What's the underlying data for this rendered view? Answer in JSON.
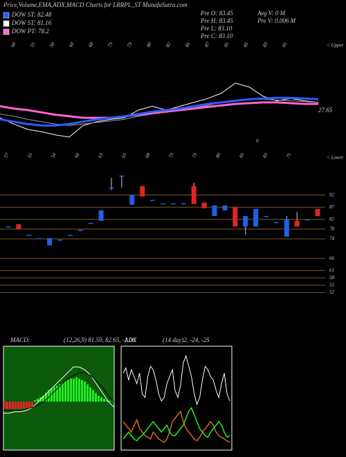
{
  "header": {
    "title": "Price,Volume,EMA,ADX,MACD Charts for LRRPL_ST MunafaSutra.com"
  },
  "legend": [
    {
      "label": "DOW ST: 82.48",
      "color": "#2a5cff"
    },
    {
      "label": "DOW ST: 81.16",
      "color": "#ffffff"
    },
    {
      "label": "DOW PT: 78.2",
      "color": "#ff66cc"
    }
  ],
  "quote": {
    "left": [
      "Pre O: 83.45",
      "Pre H: 83.45",
      "Pre L: 83.10",
      "Pre C: 83.10"
    ],
    "right": [
      "Avg V: 0 M",
      "Pre V: 0.006 M"
    ]
  },
  "chart_data": [
    {
      "type": "line",
      "upper_label": "< Upper",
      "lower_label": "< Lower",
      "annotations": [
        "27.65",
        "0"
      ],
      "top_labels": [
        "60",
        "55",
        "50",
        "60",
        "68",
        "73",
        "73",
        "80",
        "82",
        "85",
        "87",
        "85",
        "85",
        "83",
        "81"
      ],
      "bottom_labels": [
        "57",
        "55",
        "54",
        "60",
        "63",
        "65",
        "68",
        "73",
        "73",
        "80",
        "83",
        "83",
        "75"
      ],
      "series": [
        {
          "color": "#ffffff",
          "width": 1,
          "values": [
            60,
            52,
            45,
            42,
            38,
            35,
            50,
            55,
            58,
            60,
            70,
            75,
            70,
            75,
            80,
            85,
            92,
            105,
            100,
            88,
            82,
            85,
            82,
            80
          ]
        },
        {
          "color": "#999999",
          "width": 1,
          "values": [
            65,
            62,
            58,
            55,
            52,
            50,
            52,
            54,
            56,
            58,
            62,
            65,
            68,
            70,
            73,
            76,
            80,
            83,
            84,
            84,
            83,
            82,
            81,
            80
          ]
        },
        {
          "color": "#ff66cc",
          "width": 3,
          "values": [
            75,
            72,
            70,
            67,
            64,
            62,
            60,
            60,
            60,
            62,
            64,
            66,
            68,
            70,
            72,
            74,
            76,
            78,
            79,
            80,
            80,
            79,
            78,
            78
          ]
        },
        {
          "color": "#2a5cff",
          "width": 3,
          "values": [
            58,
            55,
            52,
            50,
            50,
            52,
            55,
            58,
            60,
            62,
            65,
            68,
            70,
            72,
            75,
            78,
            80,
            82,
            84,
            85,
            86,
            86,
            85,
            84
          ]
        }
      ]
    },
    {
      "type": "candlestick",
      "ylim": [
        47,
        101
      ],
      "yticks": [
        92,
        87,
        82,
        78,
        74,
        66,
        61,
        58,
        55,
        52
      ],
      "up_color": "#2060e8",
      "down_color": "#e02424",
      "grid_color": "#7a5a2a",
      "open": [
        79.1,
        80,
        75.7,
        74.3,
        71.4,
        73.7,
        75.7,
        77.7,
        80.6,
        81.4,
        95.1,
        100,
        88,
        95.7,
        90,
        88.6,
        88.6,
        88.6,
        95.7,
        88.9,
        83.4,
        85.7,
        87.1,
        79.1,
        79.1,
        83.4,
        80.9,
        74.9,
        81.4,
        82,
        86.3
      ],
      "high": [
        79.1,
        80,
        75.7,
        74.3,
        74.3,
        73.7,
        75.7,
        77.7,
        80.6,
        85.7,
        99.1,
        100,
        92,
        95.7,
        90,
        88.6,
        88.6,
        88.6,
        97.1,
        88.9,
        87.7,
        87.7,
        87.1,
        83.4,
        86.3,
        83.4,
        80.9,
        83.4,
        85,
        82,
        86.3
      ],
      "low": [
        79.1,
        78,
        75.7,
        74.3,
        71.4,
        73.7,
        75.7,
        77.7,
        80.6,
        81.4,
        94,
        95.1,
        88,
        91.4,
        90,
        88.6,
        88.6,
        88.6,
        88.3,
        86.6,
        83.4,
        85.7,
        79.1,
        75.7,
        79.1,
        83.4,
        80.9,
        74.9,
        79.1,
        82,
        83.4
      ],
      "close": [
        79.1,
        78,
        75.7,
        74.3,
        74.3,
        73.7,
        75.7,
        77.7,
        80.6,
        85.7,
        95.1,
        100,
        92,
        91.4,
        90,
        88.6,
        88.6,
        88.6,
        88.3,
        86.6,
        87.7,
        87.7,
        79.1,
        83.4,
        86.3,
        83.4,
        80.9,
        82,
        79.1,
        82,
        83.4
      ]
    },
    {
      "type": "macd",
      "title": "MACD:",
      "subtitle": "(12,26,9) 81.59, 82.65, -1.06",
      "background": "#0b5a0b",
      "pos_color": "#22ee22",
      "neg_color": "#ee2222",
      "histogram": [
        -2.5,
        -2.6,
        -2.5,
        -2.7,
        -2.6,
        -2.5,
        -2.6,
        -2.5,
        -2.4,
        -2.3,
        -2,
        0.5,
        1,
        1.5,
        2,
        3,
        4,
        4.5,
        5,
        5.5,
        6,
        6.5,
        7,
        7.5,
        8,
        8,
        8.5,
        8,
        7.5,
        7,
        6,
        5,
        4,
        3,
        2,
        1.5,
        1,
        0.5,
        0.3,
        0.2
      ],
      "series": [
        {
          "color": "#ffffff",
          "values": [
            -4,
            -4,
            -3.5,
            -3.5,
            -3,
            -2,
            0,
            2,
            4,
            6,
            8,
            10,
            12,
            12,
            11,
            9,
            6,
            3,
            0,
            -2
          ]
        },
        {
          "color": "#000000",
          "values": [
            -3,
            -3,
            -3,
            -3,
            -2.5,
            -2,
            -1,
            0,
            2,
            4,
            6,
            8,
            9,
            10,
            10,
            9,
            7,
            5,
            2,
            0
          ]
        }
      ]
    },
    {
      "type": "adx",
      "title": "ADX",
      "subtitle": "(14 day)2, -24, -25",
      "background": "#000000",
      "series": [
        {
          "color": "#ffffff",
          "values": [
            42,
            45,
            38,
            44,
            40,
            36,
            42,
            30,
            28,
            40,
            46,
            44,
            38,
            30,
            26,
            28,
            36,
            40,
            44,
            32,
            28,
            35,
            48,
            52,
            46,
            40,
            30,
            24,
            28,
            38,
            46,
            44,
            40,
            38,
            32,
            28,
            36,
            42,
            30,
            26
          ]
        },
        {
          "color": "#d2691e",
          "values": [
            14,
            12,
            10,
            8,
            12,
            15,
            10,
            8,
            6,
            5,
            4,
            8,
            6,
            4,
            3,
            2,
            4,
            8,
            14,
            16,
            18,
            20,
            14,
            10,
            8,
            6,
            4,
            3,
            5,
            8,
            10,
            12,
            14,
            12,
            8,
            6,
            5,
            4,
            3,
            2
          ]
        },
        {
          "color": "#22ee22",
          "values": [
            4,
            6,
            8,
            6,
            4,
            3,
            5,
            6,
            8,
            10,
            12,
            14,
            12,
            10,
            8,
            10,
            12,
            8,
            6,
            6,
            8,
            10,
            12,
            16,
            20,
            22,
            18,
            14,
            10,
            8,
            6,
            5,
            8,
            10,
            12,
            14,
            12,
            8,
            5,
            6
          ]
        }
      ]
    }
  ]
}
